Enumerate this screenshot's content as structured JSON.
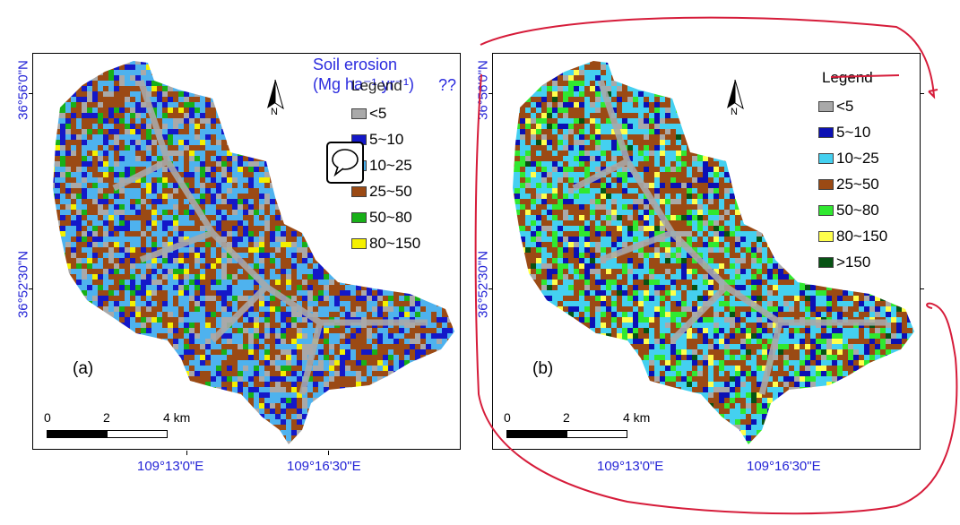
{
  "panels": [
    {
      "id": "a",
      "label": "(a)",
      "legend": {
        "title": "Legend",
        "items": [
          {
            "label": "<5",
            "color": "#a9a9a9"
          },
          {
            "label": "5~10",
            "color": "#1418c8"
          },
          {
            "label": "10~25",
            "color": "#4eb2ee"
          },
          {
            "label": "25~50",
            "color": "#9b4a14"
          },
          {
            "label": "50~80",
            "color": "#18b018"
          },
          {
            "label": "80~150",
            "color": "#f4f000"
          }
        ]
      },
      "overlay_title": [
        "Soil erosion",
        "(Mg ha⁻¹ yr⁻¹)"
      ],
      "overlay_garble": "??",
      "north_label": "N",
      "scale": {
        "ticks": [
          "0",
          "2",
          "4 km"
        ]
      },
      "lat_labels": [
        "36°56'0\"N",
        "36°52'30\"N"
      ],
      "lon_labels": [
        "109°13'0\"E",
        "109°16'30\"E"
      ]
    },
    {
      "id": "b",
      "label": "(b)",
      "legend": {
        "title": "Legend",
        "items": [
          {
            "label": "<5",
            "color": "#a9a9a9"
          },
          {
            "label": "5~10",
            "color": "#0c10b4"
          },
          {
            "label": "10~25",
            "color": "#44d0f0"
          },
          {
            "label": "25~50",
            "color": "#9b4a14"
          },
          {
            "label": "50~80",
            "color": "#30e830"
          },
          {
            "label": "80~150",
            "color": "#ffff4c"
          },
          {
            "label": ">150",
            "color": "#075214"
          }
        ]
      },
      "north_label": "N",
      "scale": {
        "ticks": [
          "0",
          "2",
          "4 km"
        ]
      },
      "lat_labels": [
        "36°56'0\"N",
        "36°52'30\"N"
      ],
      "lon_labels": [
        "109°13'0\"E",
        "109°16'30\"E"
      ]
    }
  ],
  "annotations": {
    "comment_icon": "speech-bubble-icon",
    "ink_color": "#d61c3a"
  }
}
